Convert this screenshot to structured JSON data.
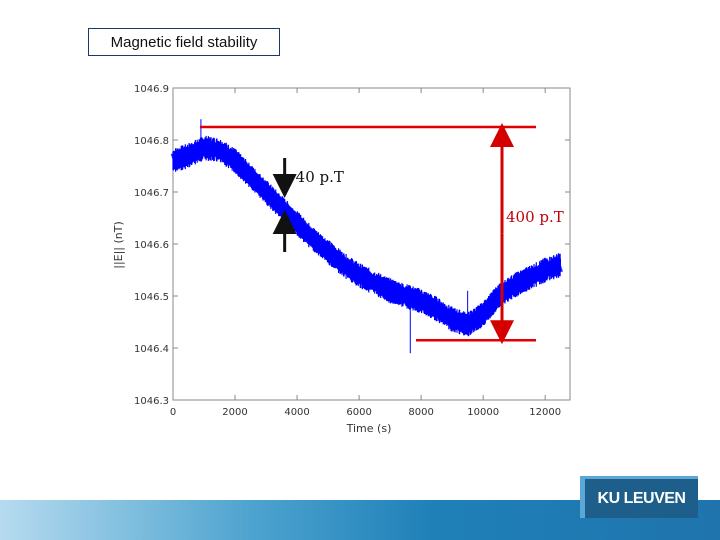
{
  "slide": {
    "title": "Magnetic field stability",
    "logo_text": "KU LEUVEN"
  },
  "chart_data": {
    "type": "line",
    "xlabel": "Time (s)",
    "ylabel": "||E|| (nT)",
    "xlim": [
      0,
      12800
    ],
    "ylim": [
      1046.3,
      1046.9
    ],
    "xticks": [
      "0",
      "2000",
      "4000",
      "6000",
      "8000",
      "10000",
      "12000"
    ],
    "yticks": [
      "1046.3",
      "1046.4",
      "1046.5",
      "1046.6",
      "1046.7",
      "1046.8",
      "1046.9"
    ],
    "grid": false,
    "series": [
      {
        "color": "#0000ff",
        "x": [
          0,
          500,
          1000,
          1500,
          2000,
          2500,
          3000,
          3500,
          4000,
          4500,
          5000,
          5500,
          6000,
          6500,
          7000,
          7500,
          8000,
          8500,
          9000,
          9500,
          10000,
          10500,
          11000,
          11500,
          12000,
          12500
        ],
        "y": [
          1046.76,
          1046.77,
          1046.785,
          1046.78,
          1046.76,
          1046.73,
          1046.7,
          1046.67,
          1046.64,
          1046.61,
          1046.585,
          1046.56,
          1046.54,
          1046.525,
          1046.51,
          1046.5,
          1046.49,
          1046.475,
          1046.455,
          1046.445,
          1046.465,
          1046.5,
          1046.52,
          1046.535,
          1046.55,
          1046.56
        ],
        "noise_band": 0.02,
        "spikes": [
          {
            "x": 900,
            "y_top": 1046.84
          },
          {
            "x": 7650,
            "y_bottom": 1046.39
          },
          {
            "x": 9500,
            "y_top": 1046.51
          }
        ]
      }
    ],
    "annotations": [
      {
        "label": "40 p.T",
        "color": "#111111",
        "type": "noise-width",
        "x": 3600
      },
      {
        "label": "400 p.T",
        "color": "#c0000b",
        "type": "range",
        "y_top": 1046.825,
        "y_bottom": 1046.415
      }
    ]
  }
}
